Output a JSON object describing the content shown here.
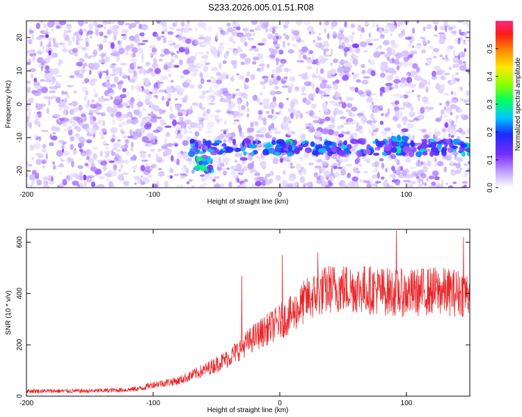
{
  "title": "S233.2026.005.01.51.R08",
  "chart_data": [
    {
      "type": "heatmap",
      "xlabel": "Height of straight line (km)",
      "ylabel": "Frequency (Hz)",
      "xlim": [
        -200,
        150
      ],
      "ylim": [
        -25,
        25
      ],
      "xticks": [
        -200,
        -100,
        0,
        100
      ],
      "yticks": [
        -20,
        -10,
        0,
        10,
        20
      ],
      "colorbar": {
        "label": "Normalized spectral amplitude",
        "range": [
          0,
          0.6
        ],
        "ticks": [
          0.0,
          0.1,
          0.2,
          0.3,
          0.4,
          0.5
        ]
      },
      "features": [
        {
          "x_range": [
            -70,
            150
          ],
          "freq": -13,
          "amplitude": 0.25
        },
        {
          "x": -60,
          "freq": -18,
          "amplitude": 0.3
        },
        {
          "x": 95,
          "freq": -12,
          "amplitude": 0.3
        },
        {
          "x": 3,
          "freq": -13,
          "amplitude": 0.28
        }
      ]
    },
    {
      "type": "line",
      "xlabel": "Height of straight line (km)",
      "ylabel": "SNR (10 * v/v)",
      "xlim": [
        -200,
        150
      ],
      "ylim": [
        0,
        650
      ],
      "xticks": [
        -200,
        -100,
        0,
        100
      ],
      "yticks": [
        0,
        200,
        400,
        600
      ],
      "color": "#e8282b",
      "trend": {
        "x": [
          -200,
          -150,
          -120,
          -110,
          -100,
          -80,
          -60,
          -40,
          -30,
          -20,
          -10,
          0,
          10,
          20,
          30,
          40,
          60,
          80,
          100,
          120,
          150
        ],
        "y": [
          20,
          20,
          25,
          30,
          45,
          60,
          100,
          150,
          190,
          230,
          260,
          290,
          320,
          370,
          400,
          420,
          420,
          410,
          400,
          410,
          400
        ]
      },
      "spikes": [
        {
          "x": -30,
          "y": 470
        },
        {
          "x": 2,
          "y": 550
        },
        {
          "x": 30,
          "y": 560
        },
        {
          "x": 92,
          "y": 645
        },
        {
          "x": 145,
          "y": 620
        }
      ]
    }
  ]
}
